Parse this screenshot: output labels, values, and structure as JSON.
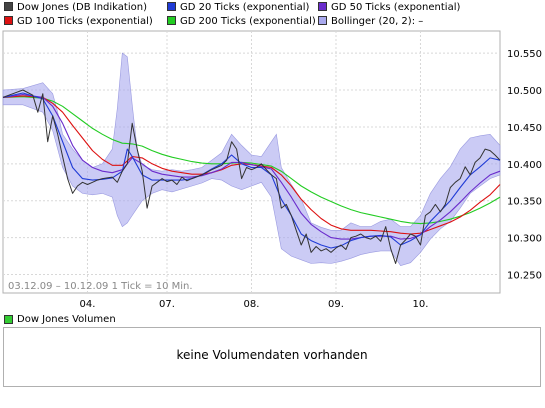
{
  "legend": {
    "items": [
      {
        "label": "Dow Jones (DB Indikation)",
        "color": "#444444"
      },
      {
        "label": "GD 20 Ticks (exponential)",
        "color": "#1f3bd6"
      },
      {
        "label": "GD 50 Ticks (exponential)",
        "color": "#6a2ccc"
      },
      {
        "label": "GD 100 Ticks (exponential)",
        "color": "#dd1111"
      },
      {
        "label": "GD 200 Ticks (exponential)",
        "color": "#22cc22"
      },
      {
        "label": "Bollinger (20, 2):  –",
        "color": "#a9a9ee"
      }
    ]
  },
  "chart_info": {
    "range_text": "03.12.09 – 10.12.09   1 Tick = 10 Min."
  },
  "chart_data": {
    "type": "line",
    "x_tick_labels": [
      "04.",
      "07.",
      "08.",
      "09.",
      "10."
    ],
    "y_tick_labels": [
      "10.250",
      "10.300",
      "10.350",
      "10.400",
      "10.450",
      "10.500",
      "10.550"
    ],
    "y_ticks": [
      10250,
      10300,
      10350,
      10400,
      10450,
      10500,
      10550
    ],
    "ylim": [
      10225,
      10580
    ],
    "x_range": [
      0,
      100
    ],
    "x_ticks": [
      17,
      33,
      50,
      67,
      84
    ],
    "grid": true,
    "series": [
      {
        "name": "Dow Jones (DB Indikation)",
        "color": "#333333",
        "x": [
          0,
          2,
          4,
          6,
          7,
          8,
          9,
          10,
          11,
          12,
          13,
          14,
          15,
          16,
          17,
          18,
          19,
          20,
          22,
          23,
          24,
          25,
          26,
          27,
          28,
          29,
          30,
          31,
          32,
          33,
          34,
          35,
          36,
          37,
          38,
          40,
          42,
          44,
          45,
          46,
          47,
          48,
          49,
          50,
          51,
          52,
          53,
          54,
          55,
          56,
          57,
          58,
          59,
          60,
          61,
          62,
          63,
          64,
          65,
          66,
          67,
          68,
          69,
          70,
          71,
          72,
          73,
          74,
          75,
          76,
          77,
          78,
          79,
          80,
          81,
          82,
          83,
          84,
          85,
          86,
          87,
          88,
          89,
          90,
          91,
          92,
          93,
          94,
          95,
          96,
          97,
          98,
          99,
          100
        ],
        "y": [
          10490,
          10495,
          10500,
          10493,
          10470,
          10495,
          10430,
          10465,
          10440,
          10410,
          10380,
          10360,
          10370,
          10375,
          10372,
          10375,
          10378,
          10380,
          10382,
          10375,
          10390,
          10400,
          10455,
          10420,
          10390,
          10340,
          10370,
          10375,
          10380,
          10376,
          10378,
          10372,
          10382,
          10377,
          10380,
          10385,
          10392,
          10398,
          10405,
          10430,
          10420,
          10380,
          10395,
          10392,
          10395,
          10400,
          10392,
          10385,
          10380,
          10340,
          10345,
          10330,
          10310,
          10290,
          10305,
          10280,
          10288,
          10282,
          10285,
          10280,
          10286,
          10290,
          10284,
          10300,
          10302,
          10305,
          10300,
          10298,
          10302,
          10295,
          10315,
          10285,
          10265,
          10290,
          10297,
          10305,
          10302,
          10290,
          10330,
          10335,
          10345,
          10335,
          10345,
          10368,
          10375,
          10380,
          10396,
          10385,
          10402,
          10408,
          10420,
          10418,
          10412,
          10405
        ]
      },
      {
        "name": "GD 20 Ticks (exponential)",
        "color": "#1f3bd6",
        "x": [
          0,
          4,
          8,
          10,
          12,
          14,
          16,
          18,
          20,
          22,
          24,
          25,
          26,
          28,
          30,
          32,
          34,
          36,
          38,
          40,
          42,
          44,
          46,
          48,
          50,
          52,
          54,
          56,
          58,
          60,
          62,
          64,
          66,
          68,
          70,
          72,
          74,
          76,
          78,
          80,
          82,
          84,
          86,
          88,
          90,
          92,
          94,
          96,
          98,
          100
        ],
        "y": [
          10490,
          10496,
          10488,
          10465,
          10430,
          10395,
          10380,
          10378,
          10379,
          10381,
          10390,
          10420,
          10410,
          10385,
          10378,
          10378,
          10378,
          10378,
          10380,
          10385,
          10393,
          10400,
          10412,
          10400,
          10395,
          10395,
          10385,
          10352,
          10330,
          10305,
          10296,
          10290,
          10286,
          10289,
          10296,
          10300,
          10302,
          10303,
          10301,
          10290,
          10296,
          10304,
          10322,
          10336,
          10350,
          10368,
          10385,
          10396,
          10408,
          10405
        ]
      },
      {
        "name": "GD 50 Ticks (exponential)",
        "color": "#6a2ccc",
        "x": [
          0,
          4,
          8,
          10,
          12,
          14,
          16,
          18,
          20,
          22,
          24,
          26,
          28,
          30,
          32,
          34,
          36,
          38,
          40,
          42,
          44,
          46,
          48,
          50,
          52,
          54,
          56,
          58,
          60,
          62,
          64,
          66,
          68,
          70,
          72,
          74,
          76,
          78,
          80,
          82,
          84,
          86,
          88,
          90,
          92,
          94,
          96,
          98,
          100
        ],
        "y": [
          10490,
          10494,
          10490,
          10478,
          10455,
          10425,
          10405,
          10395,
          10390,
          10388,
          10392,
          10408,
          10400,
          10390,
          10386,
          10384,
          10382,
          10382,
          10384,
          10388,
          10393,
          10402,
          10402,
          10399,
          10396,
          10393,
          10375,
          10355,
          10333,
          10318,
          10308,
          10300,
          10298,
          10298,
          10300,
          10302,
          10302,
          10302,
          10298,
          10299,
          10304,
          10315,
          10324,
          10335,
          10348,
          10362,
          10374,
          10385,
          10390
        ]
      },
      {
        "name": "GD 100 Ticks (exponential)",
        "color": "#dd1111",
        "x": [
          0,
          4,
          8,
          10,
          12,
          14,
          16,
          18,
          20,
          22,
          24,
          26,
          28,
          30,
          32,
          34,
          36,
          38,
          40,
          42,
          44,
          46,
          48,
          50,
          52,
          54,
          56,
          58,
          60,
          62,
          64,
          66,
          68,
          70,
          72,
          74,
          76,
          78,
          80,
          82,
          84,
          86,
          88,
          90,
          92,
          94,
          96,
          98,
          100
        ],
        "y": [
          10490,
          10492,
          10490,
          10482,
          10470,
          10452,
          10435,
          10418,
          10406,
          10398,
          10398,
          10410,
          10408,
          10400,
          10394,
          10390,
          10388,
          10386,
          10386,
          10388,
          10392,
          10398,
          10400,
          10399,
          10397,
          10395,
          10385,
          10370,
          10352,
          10338,
          10326,
          10317,
          10312,
          10310,
          10310,
          10310,
          10309,
          10308,
          10306,
          10305,
          10306,
          10311,
          10316,
          10321,
          10328,
          10337,
          10348,
          10358,
          10372
        ]
      },
      {
        "name": "GD 200 Ticks (exponential)",
        "color": "#22cc22",
        "x": [
          0,
          4,
          8,
          10,
          12,
          14,
          16,
          18,
          20,
          22,
          24,
          26,
          28,
          30,
          32,
          34,
          36,
          38,
          40,
          42,
          44,
          46,
          48,
          50,
          52,
          54,
          56,
          58,
          60,
          62,
          64,
          66,
          68,
          70,
          72,
          74,
          76,
          78,
          80,
          82,
          84,
          86,
          88,
          90,
          92,
          94,
          96,
          98,
          100
        ],
        "y": [
          10490,
          10491,
          10489,
          10485,
          10478,
          10468,
          10458,
          10448,
          10440,
          10433,
          10428,
          10427,
          10424,
          10418,
          10413,
          10409,
          10406,
          10403,
          10401,
          10400,
          10400,
          10401,
          10402,
          10401,
          10399,
          10397,
          10390,
          10380,
          10370,
          10362,
          10355,
          10349,
          10343,
          10338,
          10334,
          10331,
          10328,
          10325,
          10322,
          10320,
          10319,
          10320,
          10322,
          10325,
          10329,
          10334,
          10340,
          10347,
          10355
        ]
      },
      {
        "name": "Bollinger (20, 2)",
        "color": "#a9a9ee",
        "x": [
          0,
          4,
          8,
          10,
          11,
          12,
          14,
          16,
          18,
          20,
          22,
          23,
          24,
          25,
          26,
          27,
          28,
          30,
          32,
          34,
          36,
          38,
          40,
          42,
          44,
          46,
          48,
          50,
          52,
          54,
          55,
          56,
          58,
          60,
          62,
          64,
          66,
          68,
          70,
          72,
          74,
          76,
          78,
          80,
          82,
          84,
          86,
          88,
          90,
          92,
          94,
          96,
          98,
          100
        ],
        "upper": [
          10500,
          10502,
          10510,
          10495,
          10470,
          10440,
          10420,
          10405,
          10395,
          10400,
          10420,
          10475,
          10550,
          10545,
          10480,
          10420,
          10398,
          10392,
          10390,
          10392,
          10390,
          10392,
          10395,
          10405,
          10415,
          10440,
          10425,
          10412,
          10410,
          10430,
          10440,
          10395,
          10372,
          10352,
          10320,
          10314,
          10310,
          10310,
          10320,
          10315,
          10315,
          10322,
          10325,
          10315,
          10315,
          10330,
          10360,
          10380,
          10396,
          10420,
          10435,
          10438,
          10440,
          10425
        ],
        "lower": [
          10480,
          10480,
          10470,
          10445,
          10420,
          10395,
          10370,
          10360,
          10358,
          10360,
          10355,
          10330,
          10315,
          10320,
          10330,
          10340,
          10350,
          10360,
          10365,
          10362,
          10366,
          10370,
          10374,
          10380,
          10378,
          10370,
          10365,
          10370,
          10375,
          10355,
          10320,
          10285,
          10275,
          10270,
          10265,
          10266,
          10265,
          10268,
          10272,
          10277,
          10280,
          10282,
          10282,
          10262,
          10266,
          10280,
          10298,
          10312,
          10322,
          10340,
          10360,
          10370,
          10380,
          10385
        ]
      }
    ]
  },
  "volume": {
    "legend_label": "Dow Jones Volumen",
    "legend_color": "#33cc33",
    "message": "keine Volumendaten vorhanden"
  }
}
